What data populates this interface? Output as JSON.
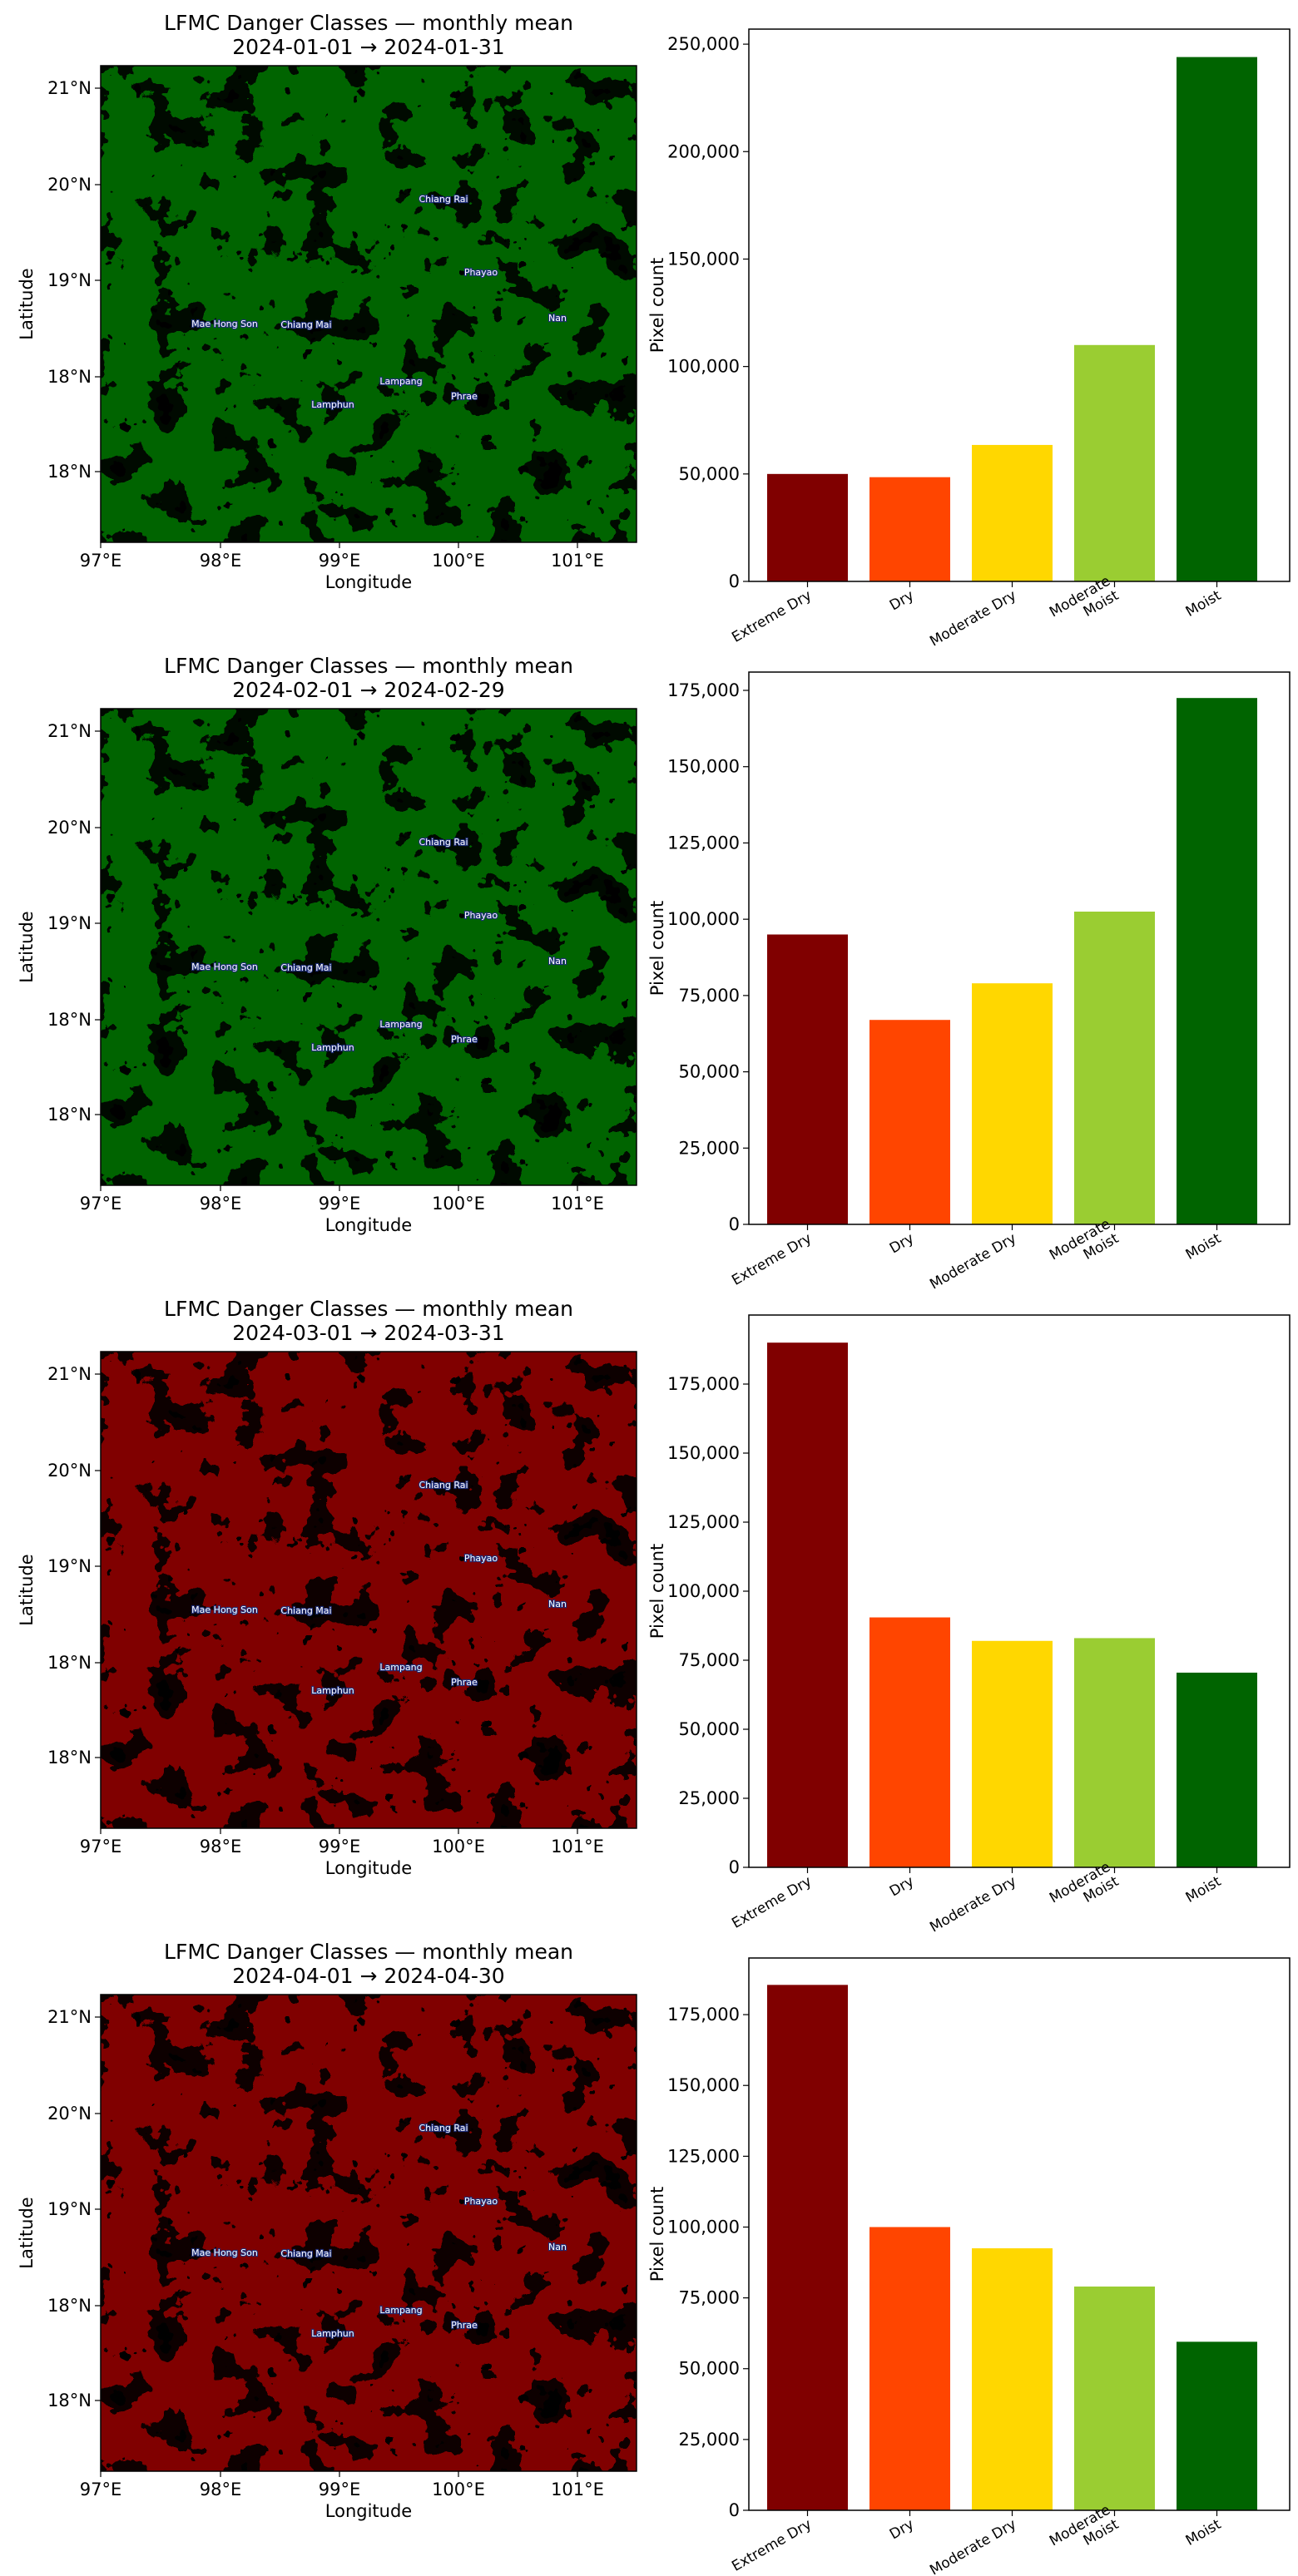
{
  "colors": {
    "Extreme Dry": "#800000",
    "Dry": "#ff4500",
    "Moderate Dry": "#ffd700",
    "Moderate Moist": "#9acd32",
    "Moist": "#006400"
  },
  "map_common": {
    "x_ticks": [
      "97°E",
      "98°E",
      "99°E",
      "100°E",
      "101°E"
    ],
    "y_ticks": [
      "21°N",
      "20°N",
      "19°N",
      "18°N",
      "18°N"
    ],
    "xlabel": "Longitude",
    "ylabel": "Latitude",
    "places": [
      "Chiang Rai",
      "Phayao",
      "Nan",
      "Mae Hong Son",
      "Chiang Mai",
      "Lampang",
      "Lamphun",
      "Phrae"
    ]
  },
  "bar_common": {
    "categories": [
      "Extreme Dry",
      "Dry",
      "Moderate Dry",
      "Moderate Moist",
      "Moist"
    ],
    "category_lines": [
      [
        "Extreme Dry"
      ],
      [
        "Dry"
      ],
      [
        "Moderate Dry"
      ],
      [
        "Moderate",
        "Moist"
      ],
      [
        "Moist"
      ]
    ],
    "ylabel": "Pixel count"
  },
  "chart_data": [
    {
      "type": "bar",
      "title": "LFMC Danger Classes — monthly mean",
      "subtitle": "2024-01-01 → 2024-01-31",
      "categories": [
        "Extreme Dry",
        "Dry",
        "Moderate Dry",
        "Moderate Moist",
        "Moist"
      ],
      "values": [
        50000,
        48500,
        63500,
        110000,
        244000
      ],
      "ylabel": "Pixel count",
      "ylim": [
        0,
        257000
      ],
      "yticks": [
        0,
        50000,
        100000,
        150000,
        200000,
        250000
      ],
      "ytick_labels": [
        "0",
        "50,000",
        "100,000",
        "150,000",
        "200,000",
        "250,000"
      ]
    },
    {
      "type": "bar",
      "title": "LFMC Danger Classes — monthly mean",
      "subtitle": "2024-02-01 → 2024-02-29",
      "categories": [
        "Extreme Dry",
        "Dry",
        "Moderate Dry",
        "Moderate Moist",
        "Moist"
      ],
      "values": [
        95000,
        67000,
        79000,
        102500,
        172500
      ],
      "ylabel": "Pixel count",
      "ylim": [
        0,
        181000
      ],
      "yticks": [
        0,
        25000,
        50000,
        75000,
        100000,
        125000,
        150000,
        175000
      ],
      "ytick_labels": [
        "0",
        "25,000",
        "50,000",
        "75,000",
        "100,000",
        "125,000",
        "150,000",
        "175,000"
      ]
    },
    {
      "type": "bar",
      "title": "LFMC Danger Classes — monthly mean",
      "subtitle": "2024-03-01 → 2024-03-31",
      "categories": [
        "Extreme Dry",
        "Dry",
        "Moderate Dry",
        "Moderate Moist",
        "Moist"
      ],
      "values": [
        190000,
        90500,
        82000,
        83000,
        70500
      ],
      "ylabel": "Pixel count",
      "ylim": [
        0,
        200000
      ],
      "yticks": [
        0,
        25000,
        50000,
        75000,
        100000,
        125000,
        150000,
        175000
      ],
      "ytick_labels": [
        "0",
        "25,000",
        "50,000",
        "75,000",
        "100,000",
        "125,000",
        "150,000",
        "175,000"
      ]
    },
    {
      "type": "bar",
      "title": "LFMC Danger Classes — monthly mean",
      "subtitle": "2024-04-01 → 2024-04-30",
      "categories": [
        "Extreme Dry",
        "Dry",
        "Moderate Dry",
        "Moderate Moist",
        "Moist"
      ],
      "values": [
        185500,
        100000,
        92500,
        79000,
        59500
      ],
      "ylabel": "Pixel count",
      "ylim": [
        0,
        195000
      ],
      "yticks": [
        0,
        25000,
        50000,
        75000,
        100000,
        125000,
        150000,
        175000
      ],
      "ytick_labels": [
        "0",
        "25,000",
        "50,000",
        "75,000",
        "100,000",
        "125,000",
        "150,000",
        "175,000"
      ]
    }
  ]
}
